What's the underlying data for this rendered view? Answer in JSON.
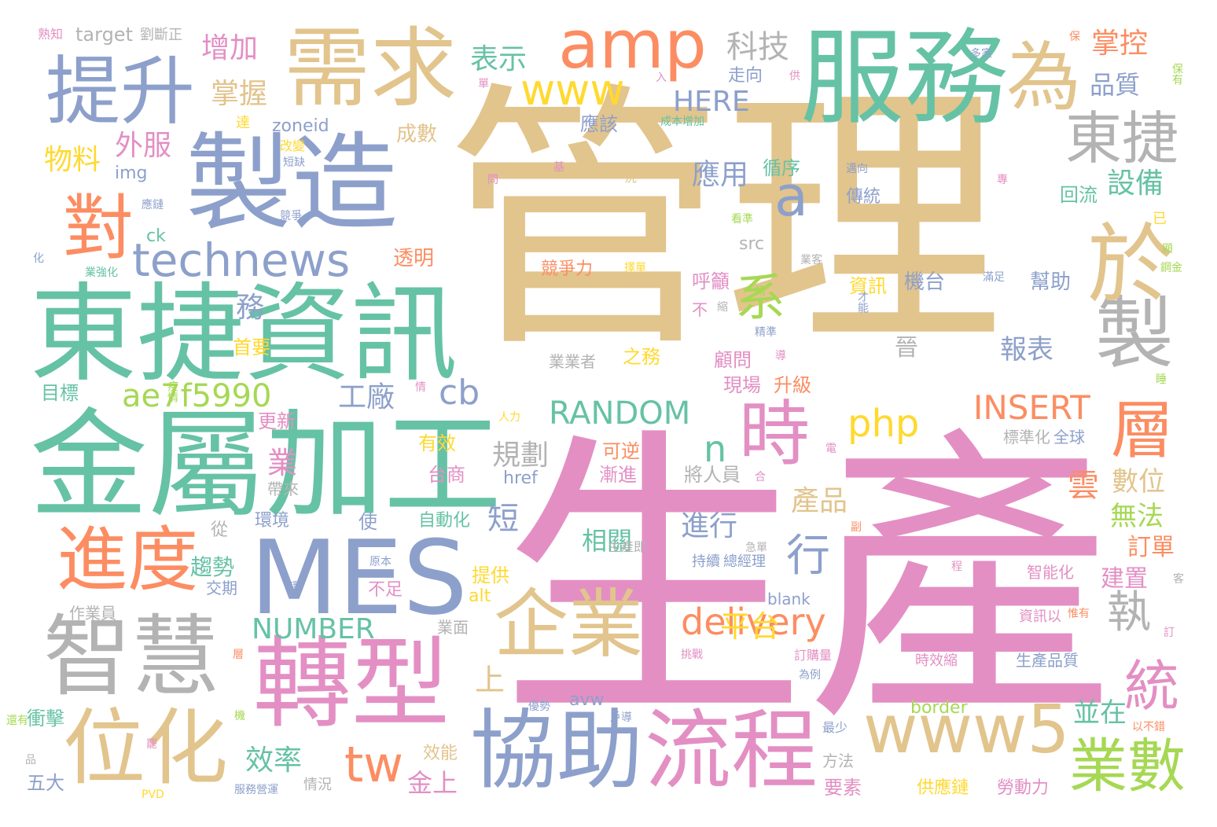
{
  "palette": {
    "tan": "#E2C48D",
    "pink": "#E38FC4",
    "green": "#66C2A5",
    "blue": "#8DA0CB",
    "orange": "#FC8D62",
    "gray": "#B3B3B3",
    "yellow": "#FFD92F",
    "lime": "#A6D854"
  },
  "words": [
    {
      "text": "管理",
      "color": "tan"
    },
    {
      "text": "生產",
      "color": "pink"
    },
    {
      "text": "東捷資訊",
      "color": "green"
    },
    {
      "text": "金屬加工",
      "color": "green"
    },
    {
      "text": "製造",
      "color": "blue"
    },
    {
      "text": "服務",
      "color": "green"
    },
    {
      "text": "需求",
      "color": "tan"
    },
    {
      "text": "提升",
      "color": "blue"
    },
    {
      "text": "amp",
      "color": "orange"
    },
    {
      "text": "為",
      "color": "tan"
    },
    {
      "text": "MES",
      "color": "blue"
    },
    {
      "text": "轉型",
      "color": "pink"
    },
    {
      "text": "協助",
      "color": "blue"
    },
    {
      "text": "流程",
      "color": "pink"
    },
    {
      "text": "智慧",
      "color": "gray"
    },
    {
      "text": "位化",
      "color": "tan"
    },
    {
      "text": "進度",
      "color": "orange"
    },
    {
      "text": "對",
      "color": "orange"
    },
    {
      "text": "technews",
      "color": "blue"
    },
    {
      "text": "東捷",
      "color": "gray"
    },
    {
      "text": "製",
      "color": "gray"
    },
    {
      "text": "於",
      "color": "tan"
    },
    {
      "text": "時",
      "color": "pink"
    },
    {
      "text": "企業",
      "color": "tan"
    },
    {
      "text": "www5",
      "color": "tan"
    },
    {
      "text": "www",
      "color": "yellow"
    },
    {
      "text": "系",
      "color": "lime"
    },
    {
      "text": "a",
      "color": "blue"
    },
    {
      "text": "層",
      "color": "orange"
    },
    {
      "text": "統",
      "color": "pink"
    },
    {
      "text": "業數",
      "color": "lime"
    },
    {
      "text": "delivery",
      "color": "orange"
    },
    {
      "text": "php",
      "color": "yellow"
    },
    {
      "text": "tw",
      "color": "orange"
    },
    {
      "text": "ae7f5990",
      "color": "lime"
    },
    {
      "text": "RANDOM",
      "color": "green"
    },
    {
      "text": "INSERT",
      "color": "orange"
    },
    {
      "text": "NUMBER",
      "color": "green"
    },
    {
      "text": "HERE",
      "color": "blue"
    },
    {
      "text": "cb",
      "color": "blue"
    },
    {
      "text": "n",
      "color": "green"
    },
    {
      "text": "行",
      "color": "blue"
    },
    {
      "text": "執",
      "color": "gray"
    },
    {
      "text": "科技",
      "color": "gray"
    },
    {
      "text": "表示",
      "color": "green"
    },
    {
      "text": "增加",
      "color": "pink"
    },
    {
      "text": "掌握",
      "color": "tan"
    },
    {
      "text": "掌控",
      "color": "orange"
    },
    {
      "text": "品質",
      "color": "blue"
    },
    {
      "text": "設備",
      "color": "green"
    },
    {
      "text": "應用",
      "color": "blue"
    },
    {
      "text": "報表",
      "color": "blue"
    },
    {
      "text": "工廠",
      "color": "blue"
    },
    {
      "text": "數位",
      "color": "tan"
    },
    {
      "text": "無法",
      "color": "lime"
    },
    {
      "text": "訂單",
      "color": "orange"
    },
    {
      "text": "建置",
      "color": "pink"
    },
    {
      "text": "規劃",
      "color": "gray"
    },
    {
      "text": "產品",
      "color": "tan"
    },
    {
      "text": "進行",
      "color": "blue"
    },
    {
      "text": "相關",
      "color": "green"
    },
    {
      "text": "趨勢",
      "color": "green"
    },
    {
      "text": "效率",
      "color": "green"
    },
    {
      "text": "金上",
      "color": "pink"
    },
    {
      "text": "並在",
      "color": "green"
    },
    {
      "text": "上",
      "color": "tan"
    },
    {
      "text": "短",
      "color": "blue"
    },
    {
      "text": "雲",
      "color": "orange"
    },
    {
      "text": "業",
      "color": "pink"
    },
    {
      "text": "平台",
      "color": "yellow"
    },
    {
      "text": "物料",
      "color": "yellow"
    },
    {
      "text": "外服",
      "color": "pink"
    },
    {
      "text": "務",
      "color": "blue"
    },
    {
      "text": "透明",
      "color": "orange"
    },
    {
      "text": "成數",
      "color": "tan"
    },
    {
      "text": "應該",
      "color": "blue"
    },
    {
      "text": "循序",
      "color": "green"
    },
    {
      "text": "走向",
      "color": "blue"
    },
    {
      "text": "回流",
      "color": "green"
    },
    {
      "text": "傳統",
      "color": "blue"
    },
    {
      "text": "競爭力",
      "color": "orange"
    },
    {
      "text": "呼籲",
      "color": "pink"
    },
    {
      "text": "資訊",
      "color": "yellow"
    },
    {
      "text": "機台",
      "color": "blue"
    },
    {
      "text": "幫助",
      "color": "blue"
    },
    {
      "text": "顧問",
      "color": "pink"
    },
    {
      "text": "現場",
      "color": "pink"
    },
    {
      "text": "升級",
      "color": "orange"
    },
    {
      "text": "之務",
      "color": "yellow"
    },
    {
      "text": "業業者",
      "color": "gray"
    },
    {
      "text": "晉",
      "color": "gray"
    },
    {
      "text": "首要",
      "color": "yellow"
    },
    {
      "text": "目標",
      "color": "green"
    },
    {
      "text": "更新",
      "color": "pink"
    },
    {
      "text": "有效",
      "color": "yellow"
    },
    {
      "text": "台商",
      "color": "pink"
    },
    {
      "text": "可逆",
      "color": "orange"
    },
    {
      "text": "漸進",
      "color": "pink"
    },
    {
      "text": "將人員",
      "color": "gray"
    },
    {
      "text": "標準化",
      "color": "gray"
    },
    {
      "text": "全球",
      "color": "blue"
    },
    {
      "text": "環境",
      "color": "blue"
    },
    {
      "text": "使",
      "color": "blue"
    },
    {
      "text": "帶來",
      "color": "gray"
    },
    {
      "text": "從",
      "color": "gray"
    },
    {
      "text": "自動化",
      "color": "green"
    },
    {
      "text": "提供",
      "color": "yellow"
    },
    {
      "text": "不足",
      "color": "pink"
    },
    {
      "text": "alt",
      "color": "yellow"
    },
    {
      "text": "交期",
      "color": "blue"
    },
    {
      "text": "作業員",
      "color": "gray"
    },
    {
      "text": "業面",
      "color": "gray"
    },
    {
      "text": "持續",
      "color": "blue"
    },
    {
      "text": "總經理",
      "color": "blue"
    },
    {
      "text": "智能化",
      "color": "pink"
    },
    {
      "text": "資訊以",
      "color": "pink"
    },
    {
      "text": "時效縮",
      "color": "pink"
    },
    {
      "text": "生產品質",
      "color": "blue"
    },
    {
      "text": "供應鏈",
      "color": "yellow"
    },
    {
      "text": "勞動力",
      "color": "pink"
    },
    {
      "text": "要素",
      "color": "pink"
    },
    {
      "text": "方法",
      "color": "gray"
    },
    {
      "text": "效能",
      "color": "tan"
    },
    {
      "text": "衝擊",
      "color": "green"
    },
    {
      "text": "五大",
      "color": "blue"
    },
    {
      "text": "情況",
      "color": "gray"
    },
    {
      "text": "服務營運",
      "color": "blue"
    },
    {
      "text": "border",
      "color": "lime"
    },
    {
      "text": "avw",
      "color": "blue"
    },
    {
      "text": "blank",
      "color": "blue"
    },
    {
      "text": "href",
      "color": "blue"
    },
    {
      "text": "src",
      "color": "gray"
    },
    {
      "text": "zoneid",
      "color": "blue"
    },
    {
      "text": "img",
      "color": "blue"
    },
    {
      "text": "ck",
      "color": "green"
    },
    {
      "text": "target",
      "color": "gray"
    },
    {
      "text": "劉斷正",
      "color": "gray"
    },
    {
      "text": "熟知",
      "color": "pink"
    },
    {
      "text": "生產即",
      "color": "gray"
    },
    {
      "text": "急單",
      "color": "gray"
    },
    {
      "text": "訂購量",
      "color": "pink"
    },
    {
      "text": "挑戰",
      "color": "pink"
    },
    {
      "text": "為例",
      "color": "blue"
    },
    {
      "text": "最少",
      "color": "blue"
    },
    {
      "text": "以不錯",
      "color": "orange"
    },
    {
      "text": "改變",
      "color": "yellow"
    },
    {
      "text": "短缺",
      "color": "blue"
    },
    {
      "text": "成本增加",
      "color": "green"
    },
    {
      "text": "多家",
      "color": "blue"
    },
    {
      "text": "保有",
      "color": "lime"
    },
    {
      "text": "業強化",
      "color": "green"
    },
    {
      "text": "不",
      "color": "pink"
    },
    {
      "text": "PVD",
      "color": "yellow"
    },
    {
      "text": "還有",
      "color": "lime"
    },
    {
      "text": "疫情",
      "color": "lime"
    },
    {
      "text": "人力",
      "color": "yellow"
    },
    {
      "text": "原本",
      "color": "blue"
    },
    {
      "text": "優勢",
      "color": "blue"
    },
    {
      "text": "才能",
      "color": "blue"
    },
    {
      "text": "精準",
      "color": "blue"
    },
    {
      "text": "競爭",
      "color": "blue"
    },
    {
      "text": "邁向",
      "color": "blue"
    },
    {
      "text": "滿足",
      "color": "blue"
    },
    {
      "text": "業客",
      "color": "gray"
    },
    {
      "text": "化",
      "color": "blue"
    },
    {
      "text": "品",
      "color": "gray"
    },
    {
      "text": "應鏈",
      "color": "blue"
    },
    {
      "text": "已",
      "color": "yellow"
    },
    {
      "text": "況",
      "color": "tan"
    },
    {
      "text": "供",
      "color": "pink"
    },
    {
      "text": "入",
      "color": "pink"
    },
    {
      "text": "保",
      "color": "orange"
    },
    {
      "text": "專",
      "color": "pink"
    },
    {
      "text": "看準",
      "color": "lime"
    },
    {
      "text": "擇單",
      "color": "yellow"
    },
    {
      "text": "基",
      "color": "pink"
    },
    {
      "text": "客",
      "color": "gray"
    },
    {
      "text": "罷",
      "color": "pink"
    },
    {
      "text": "層",
      "color": "orange"
    },
    {
      "text": "機",
      "color": "lime"
    },
    {
      "text": "訂",
      "color": "pink"
    },
    {
      "text": "戶導",
      "color": "blue"
    },
    {
      "text": "單",
      "color": "pink"
    },
    {
      "text": "問",
      "color": "pink"
    },
    {
      "text": "電",
      "color": "pink"
    },
    {
      "text": "合",
      "color": "pink"
    },
    {
      "text": "副",
      "color": "orange"
    },
    {
      "text": "精",
      "color": "lime"
    },
    {
      "text": "惟有",
      "color": "orange"
    },
    {
      "text": "環",
      "color": "blue"
    },
    {
      "text": "顯",
      "color": "lime"
    },
    {
      "text": "鋼金",
      "color": "lime"
    },
    {
      "text": "導",
      "color": "pink"
    },
    {
      "text": "睡",
      "color": "lime"
    },
    {
      "text": "縮",
      "color": "gray"
    },
    {
      "text": "程",
      "color": "pink"
    },
    {
      "text": "情",
      "color": "pink"
    },
    {
      "text": "達",
      "color": "yellow"
    }
  ]
}
